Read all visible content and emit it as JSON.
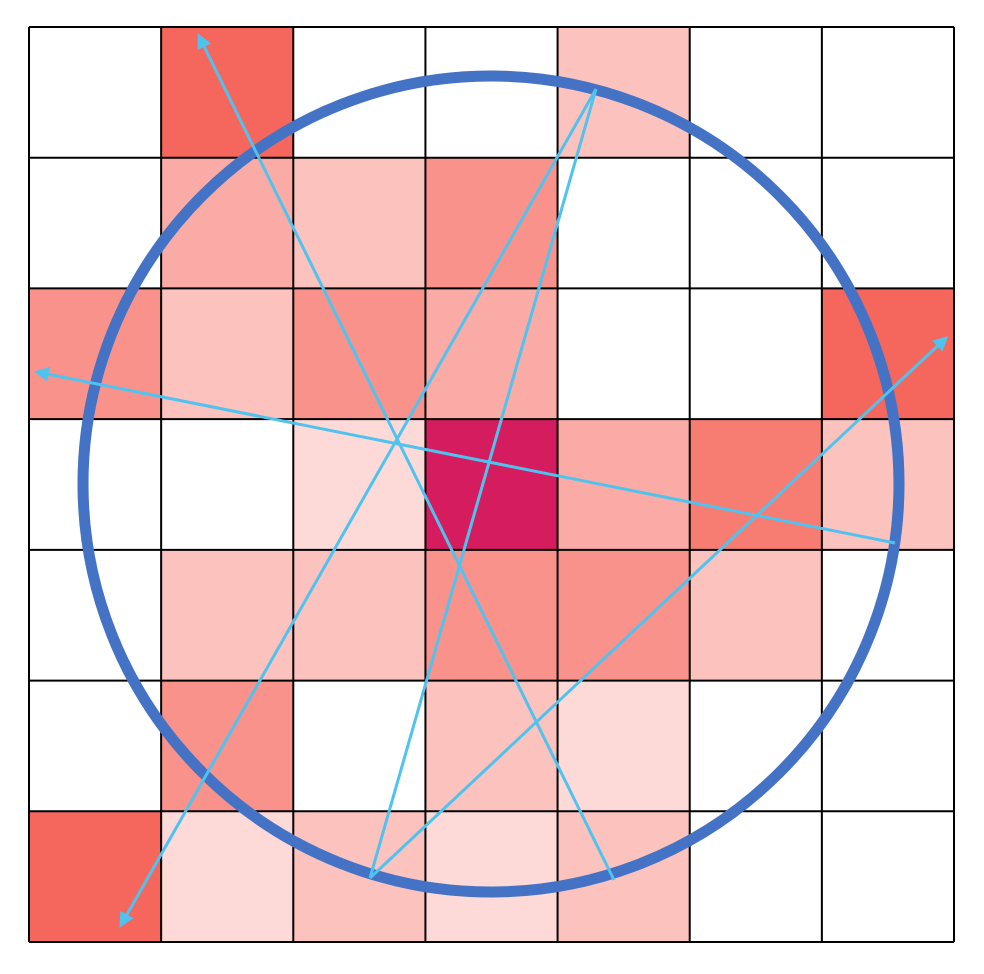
{
  "colors": {
    "background": "#ffffff",
    "grid_line": "#000000",
    "circle": "#4472c4",
    "arrow": "#4fc3f0",
    "shades": {
      "0": "#ffffff",
      "1": "#fddad7",
      "2": "#fcc2be",
      "3": "#fbaba5",
      "4": "#f9928b",
      "5": "#f77d73",
      "6": "#f5675c",
      "7": "#d41c5e"
    }
  },
  "grid": {
    "rows": 7,
    "cols": 7,
    "cells": [
      [
        0,
        6,
        0,
        0,
        2,
        0,
        0
      ],
      [
        0,
        3,
        2,
        4,
        0,
        0,
        0
      ],
      [
        4,
        2,
        4,
        3,
        0,
        0,
        6
      ],
      [
        0,
        0,
        1,
        7,
        3,
        5,
        2
      ],
      [
        0,
        2,
        2,
        4,
        4,
        2,
        0
      ],
      [
        0,
        4,
        0,
        2,
        1,
        0,
        0
      ],
      [
        6,
        1,
        2,
        1,
        2,
        0,
        0
      ]
    ]
  },
  "circle": {
    "visible": true
  },
  "arrows": [
    {
      "id": "arrow-to-upper-left",
      "head": "end"
    },
    {
      "id": "arrow-to-upper-right",
      "head": "none"
    },
    {
      "id": "arrow-to-left",
      "head": "end"
    },
    {
      "id": "arrow-to-lower-left",
      "head": "end"
    },
    {
      "id": "arrow-to-far-right",
      "head": "end"
    }
  ]
}
